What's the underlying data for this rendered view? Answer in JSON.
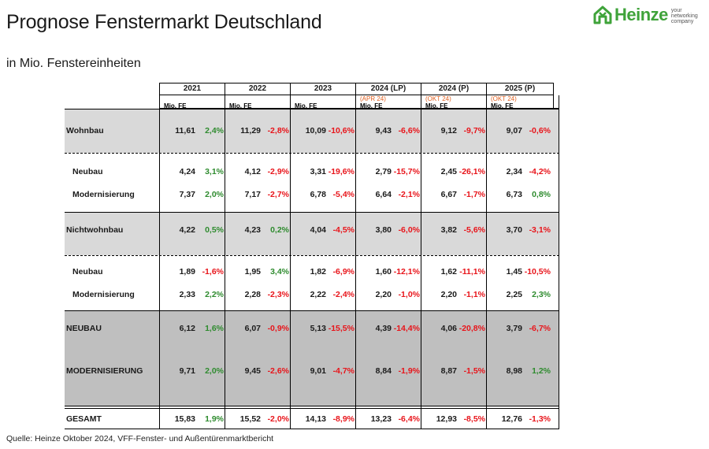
{
  "header": {
    "title": "Prognose Fenstermarkt Deutschland",
    "subtitle": "in Mio. Fenstereinheiten"
  },
  "logo": {
    "name": "Heinze",
    "tagline": "your networking company",
    "brand_color": "#3fa33a"
  },
  "table": {
    "years": [
      "2021",
      "2022",
      "2023",
      "2024 (LP)",
      "2024 (P)",
      "2025 (P)"
    ],
    "notes": [
      "",
      "",
      "",
      "(APR 24)",
      "(OKT 24)",
      "(OKT 24)"
    ],
    "unit": "Mio. FE",
    "rows": [
      {
        "label": "Wohnbau",
        "values": [
          [
            "11,61",
            "2,4%"
          ],
          [
            "11,29",
            "-2,8%"
          ],
          [
            "10,09",
            "-10,6%"
          ],
          [
            "9,43",
            "-6,6%"
          ],
          [
            "9,12",
            "-9,7%"
          ],
          [
            "9,07",
            "-0,6%"
          ]
        ]
      },
      {
        "label": "Neubau",
        "values": [
          [
            "4,24",
            "3,1%"
          ],
          [
            "4,12",
            "-2,9%"
          ],
          [
            "3,31",
            "-19,6%"
          ],
          [
            "2,79",
            "-15,7%"
          ],
          [
            "2,45",
            "-26,1%"
          ],
          [
            "2,34",
            "-4,2%"
          ]
        ]
      },
      {
        "label": "Modernisierung",
        "values": [
          [
            "7,37",
            "2,0%"
          ],
          [
            "7,17",
            "-2,7%"
          ],
          [
            "6,78",
            "-5,4%"
          ],
          [
            "6,64",
            "-2,1%"
          ],
          [
            "6,67",
            "-1,7%"
          ],
          [
            "6,73",
            "0,8%"
          ]
        ]
      },
      {
        "label": "Nichtwohnbau",
        "values": [
          [
            "4,22",
            "0,5%"
          ],
          [
            "4,23",
            "0,2%"
          ],
          [
            "4,04",
            "-4,5%"
          ],
          [
            "3,80",
            "-6,0%"
          ],
          [
            "3,82",
            "-5,6%"
          ],
          [
            "3,70",
            "-3,1%"
          ]
        ]
      },
      {
        "label": "Neubau",
        "values": [
          [
            "1,89",
            "-1,6%"
          ],
          [
            "1,95",
            "3,4%"
          ],
          [
            "1,82",
            "-6,9%"
          ],
          [
            "1,60",
            "-12,1%"
          ],
          [
            "1,62",
            "-11,1%"
          ],
          [
            "1,45",
            "-10,5%"
          ]
        ]
      },
      {
        "label": "Modernisierung",
        "values": [
          [
            "2,33",
            "2,2%"
          ],
          [
            "2,28",
            "-2,3%"
          ],
          [
            "2,22",
            "-2,4%"
          ],
          [
            "2,20",
            "-1,0%"
          ],
          [
            "2,20",
            "-1,1%"
          ],
          [
            "2,25",
            "2,3%"
          ]
        ]
      },
      {
        "label": "NEUBAU",
        "values": [
          [
            "6,12",
            "1,6%"
          ],
          [
            "6,07",
            "-0,9%"
          ],
          [
            "5,13",
            "-15,5%"
          ],
          [
            "4,39",
            "-14,4%"
          ],
          [
            "4,06",
            "-20,8%"
          ],
          [
            "3,79",
            "-6,7%"
          ]
        ]
      },
      {
        "label": "MODERNISIERUNG",
        "values": [
          [
            "9,71",
            "2,0%"
          ],
          [
            "9,45",
            "-2,6%"
          ],
          [
            "9,01",
            "-4,7%"
          ],
          [
            "8,84",
            "-1,9%"
          ],
          [
            "8,87",
            "-1,5%"
          ],
          [
            "8,98",
            "1,2%"
          ]
        ]
      },
      {
        "label": "GESAMT",
        "values": [
          [
            "15,83",
            "1,9%"
          ],
          [
            "15,52",
            "-2,0%"
          ],
          [
            "14,13",
            "-8,9%"
          ],
          [
            "13,23",
            "-6,4%"
          ],
          [
            "12,93",
            "-8,5%"
          ],
          [
            "12,76",
            "-1,3%"
          ]
        ]
      }
    ]
  },
  "source": "Quelle: Heinze Oktober 2024, VFF-Fenster- und Außentürenmarktbericht"
}
